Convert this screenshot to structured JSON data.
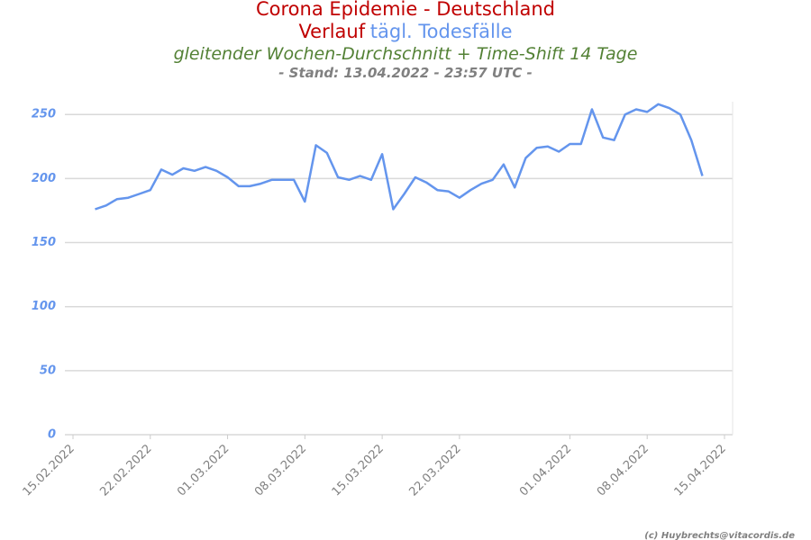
{
  "chart_data": {
    "type": "line",
    "title": "Corona Epidemie - Deutschland",
    "title_prefix": "Verlauf",
    "subtitle": "gleitender Wochen-Durchschnitt + Time-Shift 14 Tage",
    "note": "- Stand: 13.04.2022 - 23:57 UTC -",
    "credit": "(c) Huybrechts@vitacordis.de",
    "x": [
      "17.02.2022",
      "18.02.2022",
      "19.02.2022",
      "20.02.2022",
      "21.02.2022",
      "22.02.2022",
      "23.02.2022",
      "24.02.2022",
      "25.02.2022",
      "26.02.2022",
      "27.02.2022",
      "28.02.2022",
      "01.03.2022",
      "02.03.2022",
      "03.03.2022",
      "04.03.2022",
      "05.03.2022",
      "06.03.2022",
      "07.03.2022",
      "08.03.2022",
      "09.03.2022",
      "10.03.2022",
      "11.03.2022",
      "12.03.2022",
      "13.03.2022",
      "14.03.2022",
      "15.03.2022",
      "16.03.2022",
      "17.03.2022",
      "18.03.2022",
      "19.03.2022",
      "20.03.2022",
      "21.03.2022",
      "22.03.2022",
      "23.03.2022",
      "24.03.2022",
      "25.03.2022",
      "26.03.2022",
      "27.03.2022",
      "28.03.2022",
      "29.03.2022",
      "30.03.2022",
      "31.03.2022",
      "01.04.2022",
      "02.04.2022",
      "03.04.2022",
      "04.04.2022",
      "05.04.2022",
      "06.04.2022",
      "07.04.2022",
      "08.04.2022",
      "09.04.2022",
      "10.04.2022",
      "11.04.2022",
      "12.04.2022",
      "13.04.2022"
    ],
    "series": [
      {
        "name": "tägl. Todesfälle",
        "color": "#6495ed",
        "values": [
          176,
          179,
          184,
          185,
          188,
          191,
          207,
          203,
          208,
          206,
          209,
          206,
          201,
          194,
          194,
          196,
          199,
          199,
          199,
          182,
          226,
          220,
          201,
          199,
          202,
          199,
          219,
          176,
          188,
          201,
          197,
          191,
          190,
          185,
          191,
          196,
          199,
          211,
          193,
          216,
          224,
          225,
          221,
          227,
          227,
          254,
          232,
          230,
          250,
          254,
          252,
          258,
          255,
          250,
          230,
          202
        ]
      }
    ],
    "xlim": [
      "15.02.2022",
      "15.04.2022"
    ],
    "xticks": [
      "15.02.2022",
      "22.02.2022",
      "01.03.2022",
      "08.03.2022",
      "15.03.2022",
      "22.03.2022",
      "01.04.2022",
      "08.04.2022",
      "15.04.2022"
    ],
    "ylim": [
      0,
      260
    ],
    "yticks": [
      0,
      50,
      100,
      150,
      200,
      250
    ],
    "grid": true
  }
}
